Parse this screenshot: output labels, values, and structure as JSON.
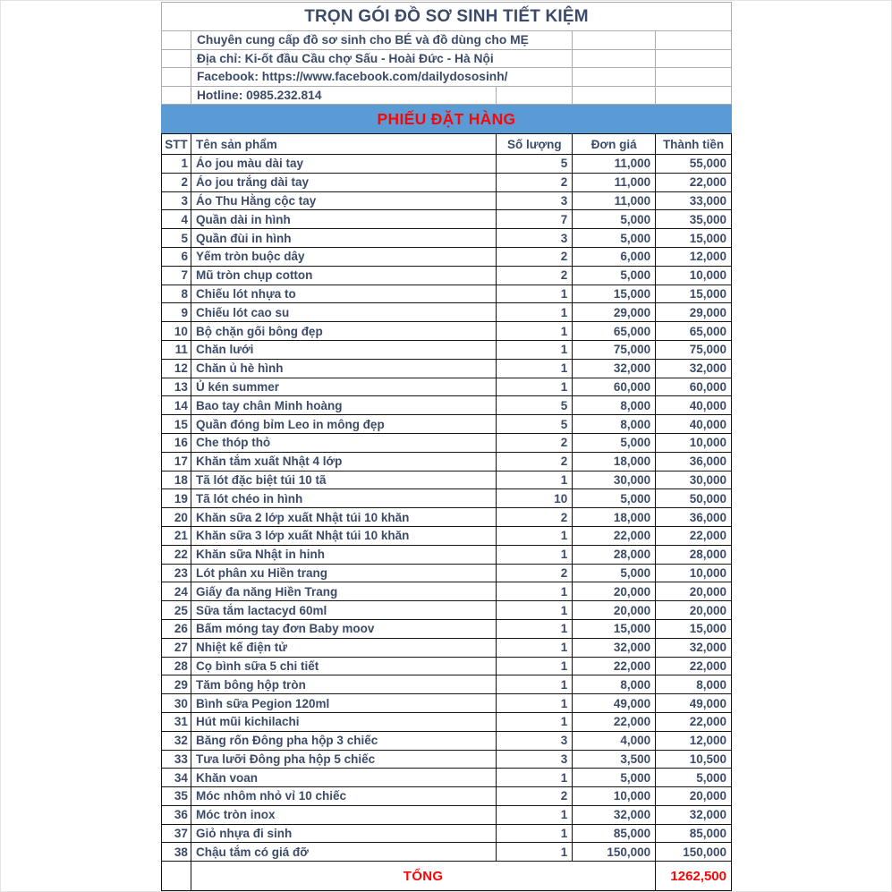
{
  "header": {
    "title": "TRỌN GÓI ĐỒ SƠ SINH TIẾT KIỆM",
    "info_lines": {
      "supply": "Chuyên cung cấp đồ sơ sinh cho BÉ và đồ dùng cho MẸ",
      "address": "Địa chỉ: Ki-ốt đầu Cầu chợ Sấu - Hoài Đức - Hà Nội",
      "facebook": "Facebook: https://www.facebook.com/dailydososinh/",
      "hotline": "Hotline: 0985.232.814"
    },
    "banner": "PHIẾU ĐẶT HÀNG"
  },
  "table": {
    "columns": {
      "stt": "STT",
      "name": "Tên sản phẩm",
      "qty": "Số lượng",
      "unit_price": "Đơn giá",
      "total": "Thành tiền"
    },
    "rows": [
      {
        "stt": "1",
        "name": "Áo jou màu dài tay",
        "qty": "5",
        "unit": "11,000",
        "total": "55,000"
      },
      {
        "stt": "2",
        "name": "Áo jou trắng dài tay",
        "qty": "2",
        "unit": "11,000",
        "total": "22,000"
      },
      {
        "stt": "3",
        "name": "Áo Thu Hằng cộc tay",
        "qty": "3",
        "unit": "11,000",
        "total": "33,000"
      },
      {
        "stt": "4",
        "name": "Quần dài in hình",
        "qty": "7",
        "unit": "5,000",
        "total": "35,000"
      },
      {
        "stt": "5",
        "name": "Quần đùi in hình",
        "qty": "3",
        "unit": "5,000",
        "total": "15,000"
      },
      {
        "stt": "6",
        "name": "Yếm tròn buộc dây",
        "qty": "2",
        "unit": "6,000",
        "total": "12,000"
      },
      {
        "stt": "7",
        "name": "Mũ tròn chụp cotton",
        "qty": "2",
        "unit": "5,000",
        "total": "10,000"
      },
      {
        "stt": "8",
        "name": "Chiếu lót nhựa to",
        "qty": "1",
        "unit": "15,000",
        "total": "15,000"
      },
      {
        "stt": "9",
        "name": "Chiếu lót cao su",
        "qty": "1",
        "unit": "29,000",
        "total": "29,000"
      },
      {
        "stt": "10",
        "name": "Bộ chặn gối bông đẹp",
        "qty": "1",
        "unit": "65,000",
        "total": "65,000"
      },
      {
        "stt": "11",
        "name": "Chăn lưới",
        "qty": "1",
        "unit": "75,000",
        "total": "75,000"
      },
      {
        "stt": "12",
        "name": "Chăn ủ hè hình",
        "qty": "1",
        "unit": "32,000",
        "total": "32,000"
      },
      {
        "stt": "13",
        "name": "Ủ kén summer",
        "qty": "1",
        "unit": "60,000",
        "total": "60,000"
      },
      {
        "stt": "14",
        "name": "Bao tay chân Minh hoàng",
        "qty": "5",
        "unit": "8,000",
        "total": "40,000"
      },
      {
        "stt": "15",
        "name": "Quần đóng bỉm Leo in mông đẹp",
        "qty": "5",
        "unit": "8,000",
        "total": "40,000"
      },
      {
        "stt": "16",
        "name": "Che thóp thỏ",
        "qty": "2",
        "unit": "5,000",
        "total": "10,000"
      },
      {
        "stt": "17",
        "name": "Khăn tắm xuất Nhật 4 lớp",
        "qty": "2",
        "unit": "18,000",
        "total": "36,000"
      },
      {
        "stt": "18",
        "name": "Tã lót đặc biệt túi 10 tã",
        "qty": "1",
        "unit": "30,000",
        "total": "30,000"
      },
      {
        "stt": "19",
        "name": "Tã lót chéo in hình",
        "qty": "10",
        "unit": "5,000",
        "total": "50,000"
      },
      {
        "stt": "20",
        "name": "Khăn sữa 2 lớp xuất Nhật túi 10 khăn",
        "qty": "2",
        "unit": "18,000",
        "total": "36,000"
      },
      {
        "stt": "21",
        "name": "Khăn sữa 3 lớp xuất Nhật túi 10 khăn",
        "qty": "1",
        "unit": "22,000",
        "total": "22,000"
      },
      {
        "stt": "22",
        "name": "Khăn sữa Nhật in hinh",
        "qty": "1",
        "unit": "28,000",
        "total": "28,000"
      },
      {
        "stt": "23",
        "name": "Lót phân xu Hiền trang",
        "qty": "2",
        "unit": "5,000",
        "total": "10,000"
      },
      {
        "stt": "24",
        "name": "Giấy đa năng Hiền Trang",
        "qty": "1",
        "unit": "20,000",
        "total": "20,000"
      },
      {
        "stt": "25",
        "name": "Sữa tắm lactacyd 60ml",
        "qty": "1",
        "unit": "20,000",
        "total": "20,000"
      },
      {
        "stt": "26",
        "name": "Bấm móng tay đơn Baby moov",
        "qty": "1",
        "unit": "15,000",
        "total": "15,000"
      },
      {
        "stt": "27",
        "name": "Nhiệt kế điện tử",
        "qty": "1",
        "unit": "32,000",
        "total": "32,000"
      },
      {
        "stt": "28",
        "name": "Cọ bình sữa 5 chi tiết",
        "qty": "1",
        "unit": "22,000",
        "total": "22,000"
      },
      {
        "stt": "29",
        "name": "Tăm bông hộp tròn",
        "qty": "1",
        "unit": "8,000",
        "total": "8,000"
      },
      {
        "stt": "30",
        "name": "Bình sữa Pegion 120ml",
        "qty": "1",
        "unit": "49,000",
        "total": "49,000"
      },
      {
        "stt": "31",
        "name": "Hút mũi kichilachi",
        "qty": "1",
        "unit": "22,000",
        "total": "22,000"
      },
      {
        "stt": "32",
        "name": "Băng rốn Đông pha hộp 3 chiếc",
        "qty": "3",
        "unit": "4,000",
        "total": "12,000"
      },
      {
        "stt": "33",
        "name": "Tưa lưỡi Đông pha hộp 5 chiếc",
        "qty": "3",
        "unit": "3,500",
        "total": "10,500"
      },
      {
        "stt": "34",
        "name": "Khăn voan",
        "qty": "1",
        "unit": "5,000",
        "total": "5,000"
      },
      {
        "stt": "35",
        "name": "Móc nhôm nhỏ vỉ 10 chiếc",
        "qty": "2",
        "unit": "10,000",
        "total": "20,000"
      },
      {
        "stt": "36",
        "name": "Móc tròn inox",
        "qty": "1",
        "unit": "32,000",
        "total": "32,000"
      },
      {
        "stt": "37",
        "name": "Giỏ nhựa đi sinh",
        "qty": "1",
        "unit": "85,000",
        "total": "85,000"
      },
      {
        "stt": "38",
        "name": "Chậu tắm có giá đỡ",
        "qty": "1",
        "unit": "150,000",
        "total": "150,000"
      }
    ],
    "footer": {
      "label": "TỔNG",
      "grand_total": "1262,500"
    }
  },
  "colors": {
    "banner_blue": "#5B9BD5",
    "accent_red": "#FB0606",
    "text_navy": "#3C4B68",
    "grid_gray": "#ACACAC",
    "grid_black": "#141414"
  }
}
